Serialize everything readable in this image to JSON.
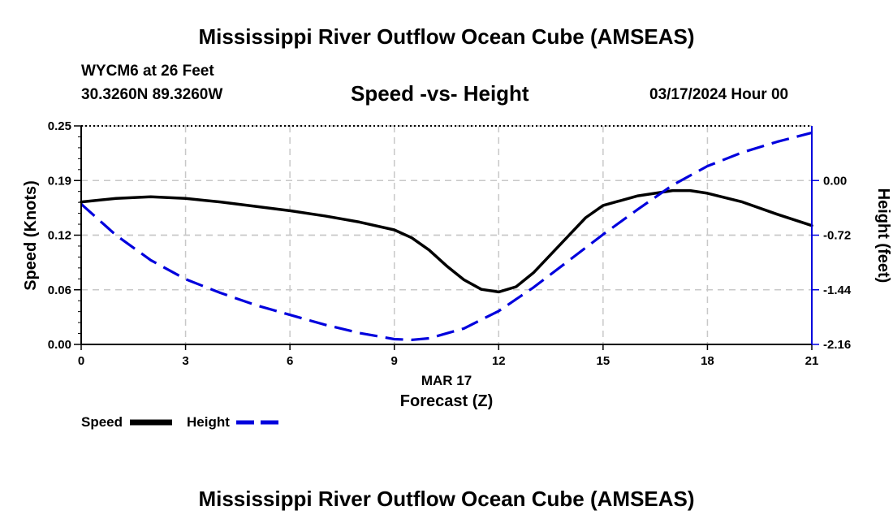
{
  "page": {
    "title_top": "Mississippi River Outflow Ocean Cube (AMSEAS)",
    "title_bottom": "Mississippi River Outflow Ocean Cube (AMSEAS)",
    "station": "WYCM6 at 26 Feet",
    "coordinates": "30.3260N  89.3260W",
    "subtitle": "Speed -vs- Height",
    "datetime": "03/17/2024 Hour 00"
  },
  "chart_data": {
    "type": "line",
    "title": "Speed -vs- Height",
    "xlabel": "Forecast (Z)",
    "xlabel_date": "MAR 17",
    "ylabel": "Speed (Knots)",
    "y2label": "Height (feet)",
    "xlim": [
      0,
      21
    ],
    "ylim": [
      0,
      0.25
    ],
    "y2lim": [
      -2.16,
      0.72
    ],
    "x_ticks": [
      0,
      3,
      6,
      9,
      12,
      15,
      18,
      21
    ],
    "x_tick_labels": [
      "0",
      "3",
      "6",
      "9",
      "12",
      "15",
      "18",
      "21"
    ],
    "y_ticks": [
      0.0,
      0.0625,
      0.125,
      0.1875,
      0.25
    ],
    "y_tick_labels": [
      "0.00",
      "0.06",
      "0.12",
      "0.19",
      "0.25"
    ],
    "y2_ticks": [
      -2.16,
      -1.44,
      -0.72,
      0.0
    ],
    "y2_tick_labels": [
      "-2.16",
      "-1.44",
      "-0.72",
      "0.00"
    ],
    "grid": true,
    "legend_position": "bottom-left",
    "series": [
      {
        "name": "Speed",
        "axis": "left",
        "color": "#000000",
        "dash": "solid",
        "x": [
          0,
          1,
          2,
          3,
          4,
          5,
          6,
          7,
          8,
          9,
          9.5,
          10,
          10.5,
          11,
          11.5,
          12,
          12.5,
          13,
          14,
          14.5,
          15,
          16,
          17,
          17.5,
          18,
          19,
          20,
          21
        ],
        "values": [
          0.163,
          0.167,
          0.169,
          0.167,
          0.163,
          0.158,
          0.153,
          0.147,
          0.14,
          0.131,
          0.122,
          0.108,
          0.09,
          0.074,
          0.063,
          0.06,
          0.066,
          0.082,
          0.124,
          0.145,
          0.159,
          0.17,
          0.176,
          0.176,
          0.173,
          0.163,
          0.149,
          0.136
        ]
      },
      {
        "name": "Height",
        "axis": "right",
        "color": "#0000dd",
        "dash": "dashed",
        "x": [
          0,
          1,
          2,
          3,
          4,
          5,
          6,
          7,
          8,
          9,
          9.5,
          10,
          11,
          12,
          13,
          14,
          15,
          16,
          17,
          18,
          19,
          20,
          21
        ],
        "values": [
          -0.31,
          -0.72,
          -1.05,
          -1.3,
          -1.48,
          -1.64,
          -1.77,
          -1.9,
          -2.01,
          -2.09,
          -2.1,
          -2.08,
          -1.95,
          -1.72,
          -1.41,
          -1.06,
          -0.71,
          -0.38,
          -0.06,
          0.19,
          0.37,
          0.51,
          0.63
        ]
      }
    ]
  }
}
